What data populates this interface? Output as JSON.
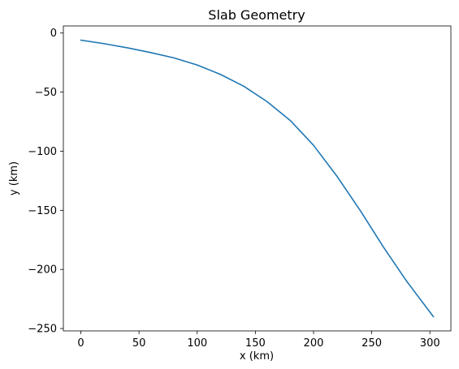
{
  "chart_data": {
    "type": "line",
    "title": "Slab Geometry",
    "xlabel": "x (km)",
    "ylabel": "y (km)",
    "xlim": [
      -15,
      318
    ],
    "ylim": [
      -252,
      6
    ],
    "xticks": [
      0,
      50,
      100,
      150,
      200,
      250,
      300
    ],
    "yticks": [
      0,
      -50,
      -100,
      -150,
      -200,
      -250
    ],
    "grid": false,
    "colors": {
      "line": "#1f77b4"
    },
    "series": [
      {
        "x": [
          0,
          20,
          40,
          60,
          80,
          100,
          120,
          140,
          160,
          180,
          200,
          220,
          240,
          260,
          280,
          303
        ],
        "values": [
          -6,
          -9,
          -12.5,
          -16.5,
          -21,
          -27,
          -35,
          -45,
          -58,
          -74,
          -95,
          -121,
          -150,
          -181,
          -210,
          -240
        ]
      }
    ]
  }
}
